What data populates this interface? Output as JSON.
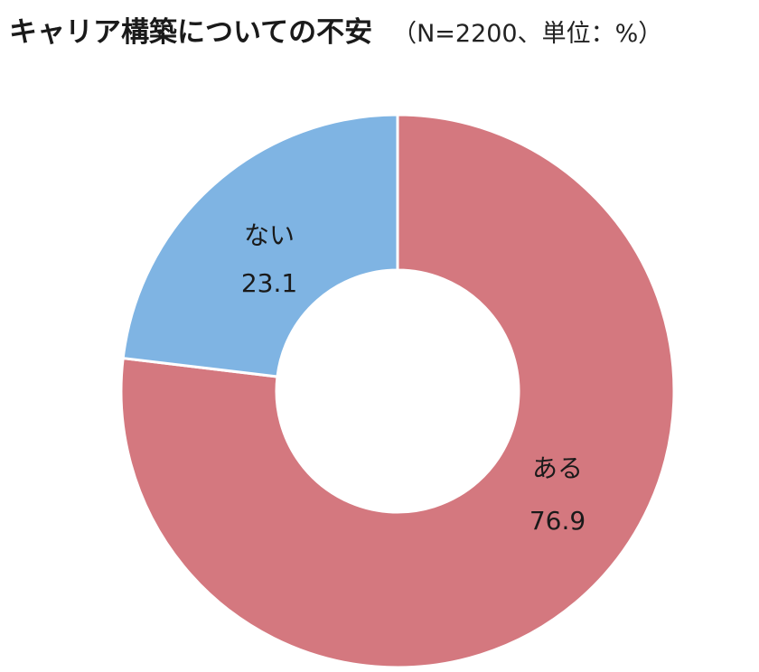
{
  "chart_data": {
    "type": "pie",
    "title": "キャリア構築についての不安",
    "subtitle": "（N=2200、単位：%）",
    "categories": [
      "ある",
      "ない"
    ],
    "values": [
      76.9,
      23.1
    ],
    "donut": true,
    "start": "12 o'clock",
    "direction": "clockwise",
    "colors": [
      "#d4787f",
      "#7fb4e3"
    ],
    "data_labels": [
      {
        "name": "ある",
        "value": "76.9"
      },
      {
        "name": "ない",
        "value": "23.1"
      }
    ],
    "legend": "none"
  }
}
